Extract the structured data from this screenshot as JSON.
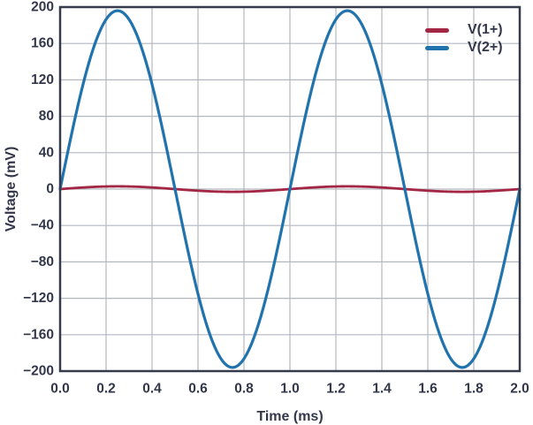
{
  "chart_data": {
    "type": "line",
    "title": "",
    "xlabel": "Time (ms)",
    "ylabel": "Voltage (mV)",
    "xlim": [
      0,
      2.0
    ],
    "ylim": [
      -200,
      200
    ],
    "xticks": [
      0,
      0.2,
      0.4,
      0.6,
      0.8,
      1.0,
      1.2,
      1.4,
      1.6,
      1.8,
      2.0
    ],
    "xtick_labels": [
      "0.0",
      "0.2",
      "0.4",
      "0.6",
      "0.8",
      "1.0",
      "1.2",
      "1.4",
      "1.6",
      "1.8",
      "2.0"
    ],
    "yticks": [
      -200,
      -160,
      -120,
      -80,
      -40,
      0,
      40,
      80,
      120,
      160,
      200
    ],
    "ytick_labels": [
      "−200",
      "−160",
      "−120",
      "−80",
      "−40",
      "0",
      "40",
      "80",
      "120",
      "160",
      "200"
    ],
    "grid": true,
    "legend_position": "top-right",
    "series": [
      {
        "name": "V(1+)",
        "color": "#a32645",
        "waveform": "sine",
        "amplitude_mV": 3,
        "period_ms": 1.0,
        "phase_deg": 0,
        "stroke_width": 2.8
      },
      {
        "name": "V(2+)",
        "color": "#2173ae",
        "waveform": "sine",
        "amplitude_mV": 196,
        "period_ms": 1.0,
        "phase_deg": 0,
        "stroke_width": 3.2
      }
    ]
  },
  "colors": {
    "axis": "#353b4a",
    "grid": "#b3b7bf",
    "text": "#32374a",
    "background": "#ffffff"
  }
}
